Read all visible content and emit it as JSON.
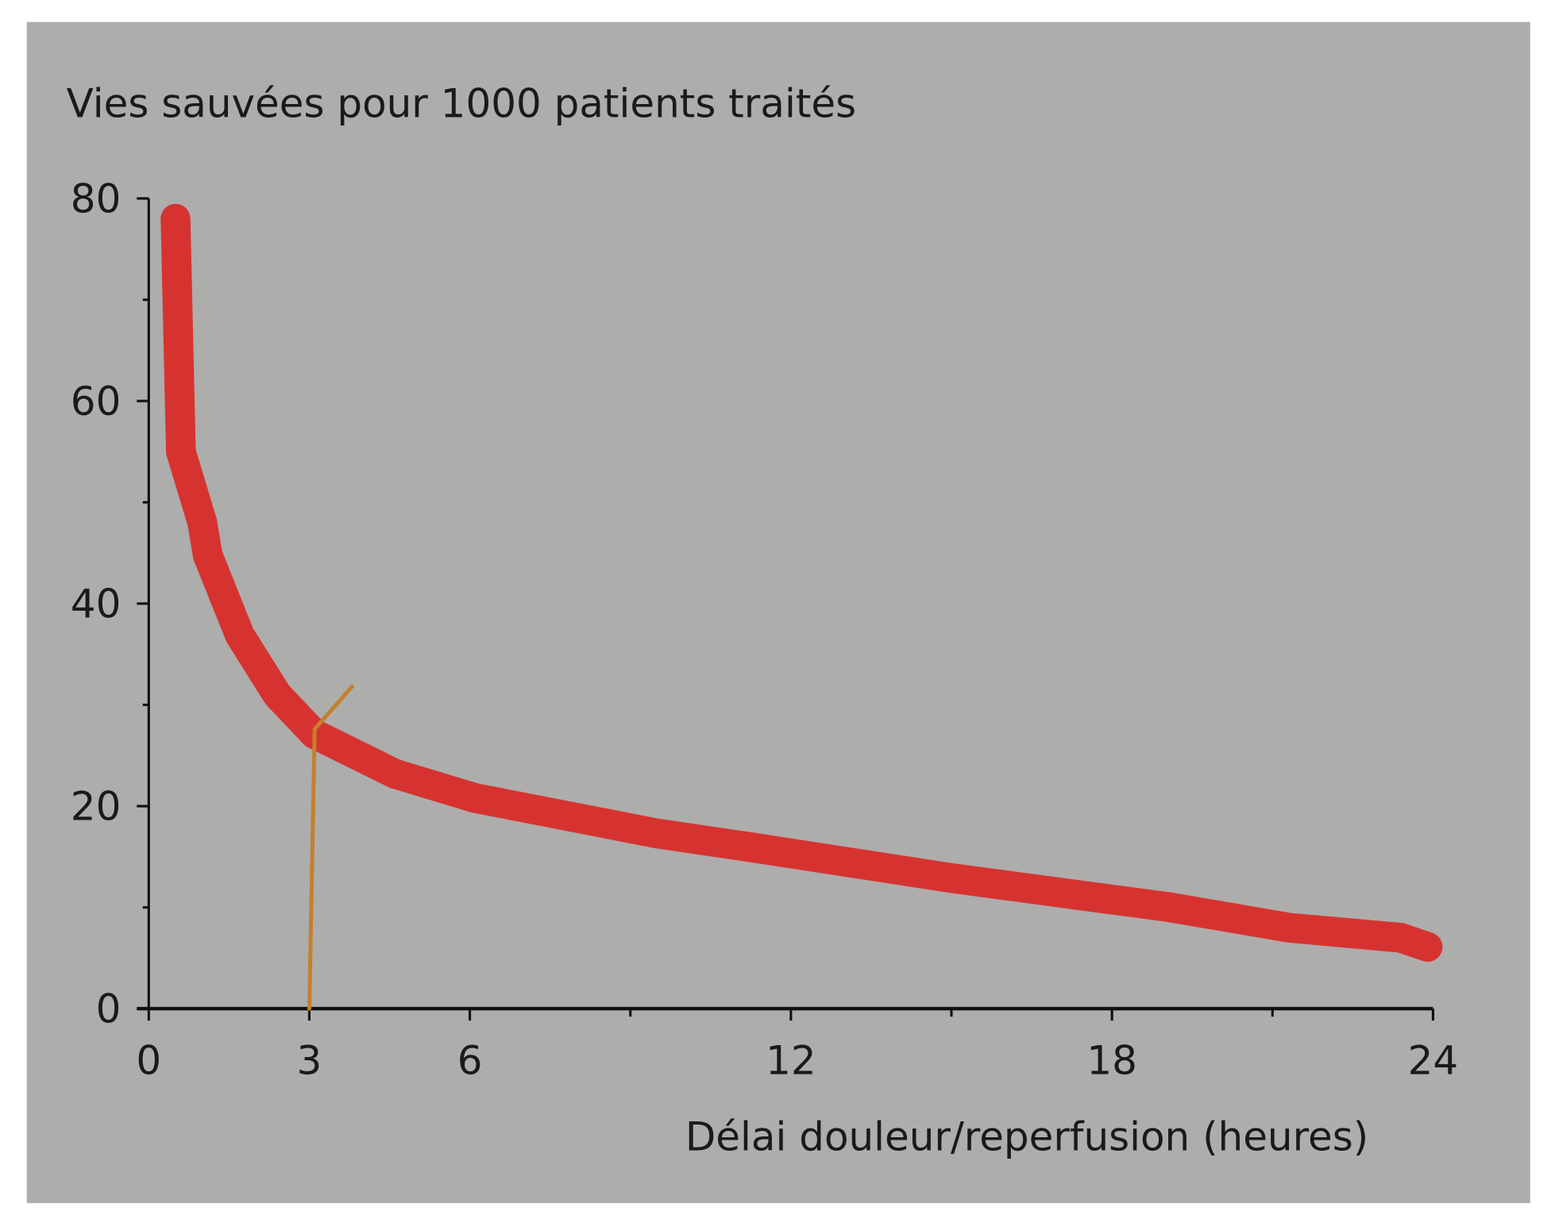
{
  "chart_data": {
    "type": "line",
    "title": "Vies sauvées pour 1000 patients traités",
    "xlabel": "Délai douleur/reperfusion (heures)",
    "ylabel": "",
    "xlim": [
      0,
      24
    ],
    "ylim": [
      0,
      80
    ],
    "xticks": [
      0,
      3,
      6,
      12,
      18,
      24
    ],
    "xticks_minor": [
      9,
      15,
      21
    ],
    "yticks": [
      0,
      20,
      40,
      60,
      80
    ],
    "yticks_minor": [
      10,
      30,
      50,
      70
    ],
    "grid": false,
    "background": "#adadab",
    "series": [
      {
        "color": "#d63330",
        "x": [
          0.5,
          0.6,
          1.0,
          1.1,
          1.7,
          2.4,
          3.1,
          4.6,
          6.1,
          9.5,
          11.3,
          15.0,
          19.1,
          21.3,
          23.4,
          23.9
        ],
        "y": [
          78,
          55,
          48,
          44.8,
          36.9,
          31,
          27.1,
          23.2,
          20.8,
          17.3,
          15.9,
          12.9,
          10.0,
          8.0,
          7.0,
          6.1
        ]
      },
      {
        "color": "#c47f2e",
        "x": [
          3.0,
          3.1,
          3.8
        ],
        "y": [
          0,
          27.6,
          31.8
        ]
      }
    ]
  }
}
